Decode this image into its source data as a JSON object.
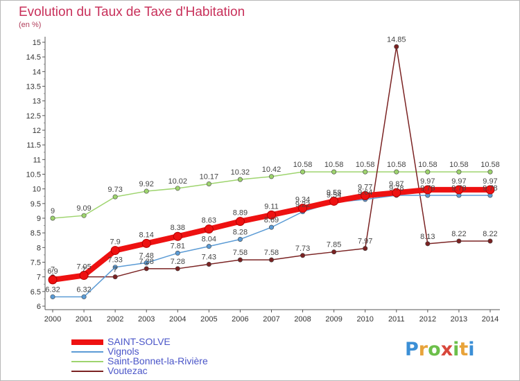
{
  "chart_data": {
    "type": "line",
    "title": "Evolution du Taux de Taxe d'Habitation",
    "unit_label": "(en %)",
    "x": [
      "2000",
      "2001",
      "2002",
      "2003",
      "2004",
      "2005",
      "2006",
      "2007",
      "2008",
      "2009",
      "2010",
      "2011",
      "2012",
      "2013",
      "2014"
    ],
    "ylim": [
      6,
      15
    ],
    "yticks": [
      "6",
      "6.5",
      "7",
      "7.5",
      "8",
      "8.5",
      "9",
      "9.5",
      "10",
      "10.5",
      "11",
      "11.5",
      "12",
      "12.5",
      "13",
      "13.5",
      "14",
      "14.5",
      "15"
    ],
    "grid": false,
    "legend_position": "bottom-left",
    "series": [
      {
        "name": "SAINT-SOLVE",
        "color": "#ee1111",
        "values": [
          6.9,
          7.05,
          7.9,
          8.14,
          8.38,
          8.63,
          8.89,
          9.11,
          9.34,
          9.58,
          9.77,
          9.87,
          9.97,
          9.97,
          9.97
        ],
        "labels": [
          "6.9",
          "7.05",
          "7.9",
          "8.14",
          "8.38",
          "8.63",
          "8.89",
          "9.11",
          "9.34",
          "9.58",
          "9.77",
          "9.87",
          "9.97",
          "9.97",
          "9.97"
        ]
      },
      {
        "name": "Vignols",
        "color": "#5b9bd5",
        "values": [
          6.32,
          6.32,
          7.33,
          7.48,
          7.81,
          8.04,
          8.28,
          8.69,
          9.22,
          9.54,
          9.64,
          9.78,
          9.78,
          9.78,
          9.78
        ],
        "labels": [
          "6.32",
          "6.32",
          "7.33",
          "7.48",
          "7.81",
          "8.04",
          "8.28",
          "8.69",
          "9.22",
          "9.54",
          "9.64",
          "9.78",
          "9.78",
          "9.78",
          "9.78"
        ]
      },
      {
        "name": "Saint-Bonnet-la-Rivière",
        "color": "#9ed46e",
        "values": [
          9,
          9.09,
          9.73,
          9.92,
          10.02,
          10.17,
          10.32,
          10.42,
          10.58,
          10.58,
          10.58,
          10.58,
          10.58,
          10.58,
          10.58
        ],
        "labels": [
          "9",
          "9.09",
          "9.73",
          "9.92",
          "10.02",
          "10.17",
          "10.32",
          "10.42",
          "10.58",
          "10.58",
          "10.58",
          "10.58",
          "10.58",
          "10.58",
          "10.58"
        ]
      },
      {
        "name": "Voutezac",
        "color": "#7a2222",
        "values": [
          7,
          7,
          7,
          7.28,
          7.28,
          7.43,
          7.58,
          7.58,
          7.73,
          7.85,
          7.97,
          14.85,
          8.13,
          8.22,
          8.22
        ],
        "labels": [
          "7",
          "7",
          "7",
          "7.28",
          "7.28",
          "7.43",
          "7.58",
          "7.58",
          "7.73",
          "7.85",
          "7.97",
          "14.85",
          "8.13",
          "8.22",
          "8.22"
        ]
      }
    ]
  },
  "logo": {
    "text": "Proxiti"
  }
}
